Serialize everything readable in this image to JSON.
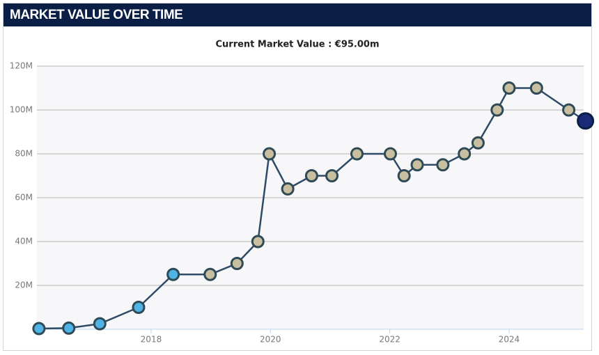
{
  "header": {
    "title": "MARKET VALUE OVER TIME"
  },
  "chart_data": {
    "type": "line",
    "title": "Current Market Value : €95.00m",
    "x": [
      2016.12,
      2016.62,
      2017.14,
      2017.79,
      2018.37,
      2018.99,
      2019.44,
      2019.79,
      2019.98,
      2020.29,
      2020.69,
      2021.03,
      2021.45,
      2022.01,
      2022.24,
      2022.46,
      2022.89,
      2023.25,
      2023.48,
      2023.8,
      2024.0,
      2024.46,
      2025.0,
      2025.28
    ],
    "series": [
      {
        "color": "#2e4a66",
        "values": [
          0.3,
          0.5,
          2.5,
          10,
          25,
          25,
          30,
          40,
          80,
          64,
          70,
          70,
          80,
          80,
          70,
          75,
          75,
          80,
          85,
          100,
          110,
          110,
          100,
          95
        ],
        "marker_colors": [
          "#4fb3e6",
          "#4fb3e6",
          "#4fb3e6",
          "#4fb3e6",
          "#4fb3e6",
          "#c8bfa0",
          "#c8bfa0",
          "#c8bfa0",
          "#c8bfa0",
          "#c8bfa0",
          "#c8bfa0",
          "#c8bfa0",
          "#c8bfa0",
          "#c8bfa0",
          "#c8bfa0",
          "#c8bfa0",
          "#c8bfa0",
          "#c8bfa0",
          "#c8bfa0",
          "#c8bfa0",
          "#c8bfa0",
          "#c8bfa0",
          "#c8bfa0",
          "#1a2a78"
        ]
      }
    ],
    "xlim": [
      2016.086,
      2025.25
    ],
    "xticks": [
      2018,
      2020,
      2022,
      2024
    ],
    "ylim": [
      0,
      120
    ],
    "yticks": [
      {
        "value": 20,
        "label": "20M"
      },
      {
        "value": 40,
        "label": "40M"
      },
      {
        "value": 60,
        "label": "60M"
      },
      {
        "value": 80,
        "label": "80M"
      },
      {
        "value": 100,
        "label": "100M"
      },
      {
        "value": 120,
        "label": "120M"
      }
    ],
    "grid": true
  }
}
